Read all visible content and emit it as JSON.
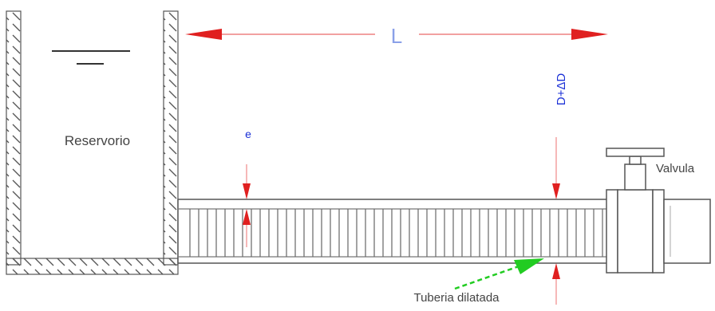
{
  "labels": {
    "reservoir": "Reservorio",
    "length": "L",
    "expanded_diameter": "D+ΔD",
    "wall_thickness": "e",
    "valve": "Valvula",
    "dilated_pipe": "Tuberia dilatada"
  },
  "colors": {
    "dimension_arrow": "#e02020",
    "pointer_arrow": "#22cc22",
    "dimension_text": "#1a2fd6",
    "structure": "#444444"
  }
}
